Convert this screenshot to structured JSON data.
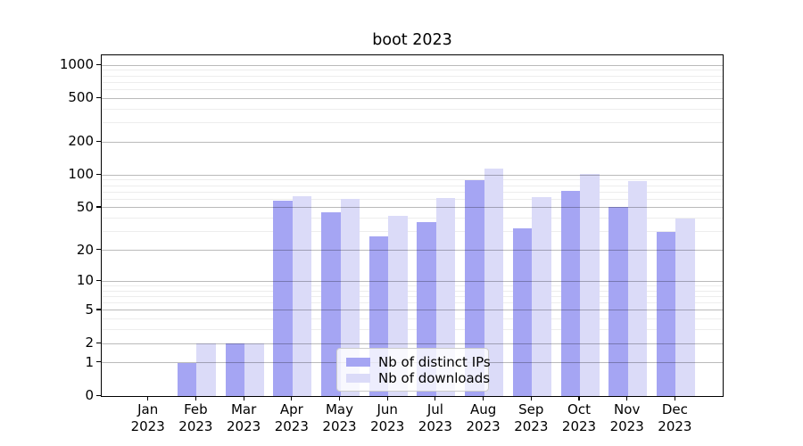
{
  "chart_data": {
    "type": "bar",
    "title": "boot 2023",
    "categories": [
      "Jan 2023",
      "Feb 2023",
      "Mar 2023",
      "Apr 2023",
      "May 2023",
      "Jun 2023",
      "Jul 2023",
      "Aug 2023",
      "Sep 2023",
      "Oct 2023",
      "Nov 2023",
      "Dec 2023"
    ],
    "series": [
      {
        "name": "Nb of distinct IPs",
        "color": "#a5a5f3",
        "values": [
          0,
          1,
          2,
          58,
          45,
          27,
          37,
          90,
          32,
          71,
          51,
          30
        ]
      },
      {
        "name": "Nb of downloads",
        "color": "#dbdbf8",
        "values": [
          0,
          2,
          2,
          64,
          60,
          42,
          61,
          115,
          63,
          102,
          88,
          40
        ]
      }
    ],
    "xlabel": "",
    "ylabel": "",
    "y_scale": "log10(1+x)",
    "y_major_ticks": [
      0,
      1,
      2,
      5,
      10,
      20,
      50,
      100,
      200,
      500,
      1000
    ],
    "y_minor_ticks": [
      3,
      4,
      6,
      7,
      8,
      9,
      30,
      40,
      60,
      70,
      80,
      90,
      300,
      400,
      600,
      700,
      800,
      900
    ],
    "ylim": [
      0,
      1230
    ],
    "grid": "on",
    "legend_position": "lower center"
  },
  "colors": {
    "major_grid": "rgba(0,0,0,0.27)",
    "minor_grid": "rgba(0,0,0,0.07)",
    "axis": "#000000",
    "background": "#ffffff"
  }
}
